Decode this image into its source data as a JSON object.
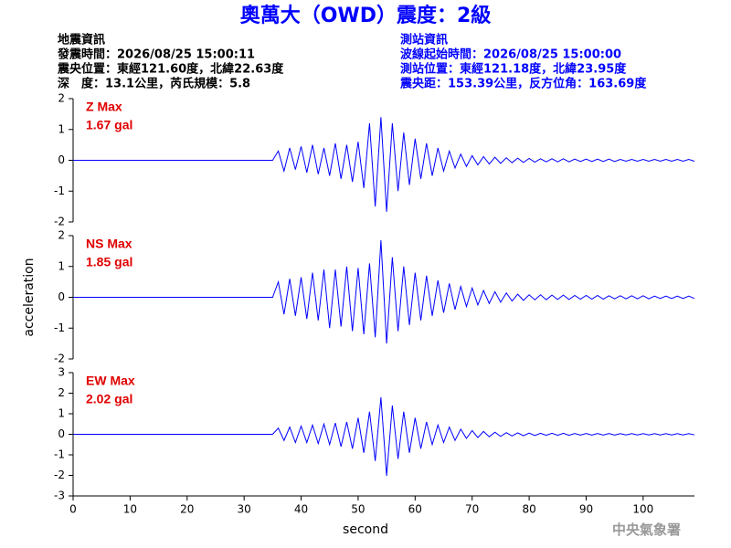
{
  "header": {
    "title": "奧萬大（OWD）震度：2級",
    "left": [
      "地震資訊",
      "發震時間：2026/08/25 15:00:11",
      "震央位置：東經121.60度，北緯22.63度",
      "深　度：13.1公里，芮氏規模：5.8"
    ],
    "right": [
      "測站資訊",
      "波線起始時間：2026/08/25 15:00:00",
      "測站位置：東經121.18度，北緯23.95度",
      "震央距：153.39公里，反方位角：163.69度"
    ]
  },
  "footer": "中央氣象署",
  "chart_data": [
    {
      "type": "line",
      "annotation": "Z Max",
      "max_label": "1.67 gal",
      "xlim": [
        0,
        109
      ],
      "ylim": [
        -2,
        2
      ],
      "yticks": [
        -2,
        -1,
        0,
        1,
        2
      ],
      "x": [
        0,
        35,
        36,
        37,
        38,
        39,
        40,
        41,
        42,
        43,
        44,
        45,
        46,
        47,
        48,
        49,
        50,
        51,
        52,
        53,
        54,
        55,
        56,
        57,
        58,
        59,
        60,
        61,
        62,
        63,
        64,
        65,
        66,
        67,
        68,
        69,
        70,
        71,
        72,
        73,
        74,
        75,
        76,
        77,
        78,
        79,
        80,
        81,
        82,
        83,
        84,
        85,
        86,
        87,
        88,
        89,
        90,
        91,
        92,
        93,
        94,
        95,
        96,
        97,
        98,
        99,
        100,
        101,
        102,
        103,
        104,
        105,
        106,
        107,
        108,
        109
      ],
      "series": [
        {
          "name": "Z",
          "color": "#0000ff",
          "values": [
            0,
            0,
            0.3,
            -0.35,
            0.4,
            -0.3,
            0.45,
            -0.4,
            0.5,
            -0.45,
            0.4,
            -0.5,
            0.55,
            -0.6,
            0.5,
            -0.7,
            0.6,
            -0.9,
            1.2,
            -1.5,
            1.4,
            -1.67,
            1.2,
            -1.0,
            0.9,
            -0.8,
            0.7,
            -0.6,
            0.55,
            -0.5,
            0.4,
            -0.35,
            0.3,
            -0.25,
            0.2,
            -0.2,
            0.15,
            -0.15,
            0.12,
            -0.12,
            0.1,
            -0.1,
            0.08,
            -0.08,
            0.07,
            -0.07,
            0.06,
            -0.06,
            0.05,
            -0.05,
            0.05,
            -0.05,
            0.05,
            -0.05,
            0.04,
            -0.04,
            0.04,
            -0.04,
            0.04,
            -0.04,
            0.04,
            -0.04,
            0.03,
            -0.03,
            0.03,
            -0.03,
            0.03,
            -0.03,
            0.03,
            -0.03,
            0.03,
            -0.03,
            0.03,
            -0.03,
            0.03,
            -0.03
          ]
        }
      ]
    },
    {
      "type": "line",
      "annotation": "NS Max",
      "max_label": "1.85 gal",
      "ylabel": "acceleration",
      "xlim": [
        0,
        109
      ],
      "ylim": [
        -2,
        2
      ],
      "yticks": [
        -2,
        -1,
        0,
        1,
        2
      ],
      "x": [
        0,
        35,
        36,
        37,
        38,
        39,
        40,
        41,
        42,
        43,
        44,
        45,
        46,
        47,
        48,
        49,
        50,
        51,
        52,
        53,
        54,
        55,
        56,
        57,
        58,
        59,
        60,
        61,
        62,
        63,
        64,
        65,
        66,
        67,
        68,
        69,
        70,
        71,
        72,
        73,
        74,
        75,
        76,
        77,
        78,
        79,
        80,
        81,
        82,
        83,
        84,
        85,
        86,
        87,
        88,
        89,
        90,
        91,
        92,
        93,
        94,
        95,
        96,
        97,
        98,
        99,
        100,
        101,
        102,
        103,
        104,
        105,
        106,
        107,
        108,
        109
      ],
      "series": [
        {
          "name": "NS",
          "color": "#0000ff",
          "values": [
            0,
            0,
            0.5,
            -0.55,
            0.6,
            -0.6,
            0.65,
            -0.7,
            0.8,
            -0.75,
            0.9,
            -1.0,
            0.9,
            -0.95,
            1.0,
            -1.1,
            0.95,
            -1.2,
            1.1,
            -1.3,
            1.85,
            -1.5,
            1.3,
            -1.1,
            1.0,
            -0.9,
            0.8,
            -0.75,
            0.7,
            -0.6,
            0.55,
            -0.5,
            0.45,
            -0.4,
            0.35,
            -0.3,
            0.3,
            -0.25,
            0.22,
            -0.2,
            0.18,
            -0.16,
            0.14,
            -0.12,
            0.1,
            -0.1,
            0.08,
            -0.08,
            0.08,
            -0.08,
            0.07,
            -0.07,
            0.07,
            -0.07,
            0.06,
            -0.06,
            0.06,
            -0.06,
            0.06,
            -0.06,
            0.05,
            -0.05,
            0.05,
            -0.05,
            0.05,
            -0.05,
            0.05,
            -0.05,
            0.04,
            -0.04,
            0.04,
            -0.04,
            0.04,
            -0.04,
            0.04,
            -0.04
          ]
        }
      ]
    },
    {
      "type": "line",
      "annotation": "EW Max",
      "max_label": "2.02 gal",
      "xlabel": "second",
      "xlim": [
        0,
        109
      ],
      "ylim": [
        -3,
        3
      ],
      "yticks": [
        -3,
        -2,
        -1,
        0,
        1,
        2,
        3
      ],
      "xticks": [
        0,
        10,
        20,
        30,
        40,
        50,
        60,
        70,
        80,
        90,
        100
      ],
      "x": [
        0,
        35,
        36,
        37,
        38,
        39,
        40,
        41,
        42,
        43,
        44,
        45,
        46,
        47,
        48,
        49,
        50,
        51,
        52,
        53,
        54,
        55,
        56,
        57,
        58,
        59,
        60,
        61,
        62,
        63,
        64,
        65,
        66,
        67,
        68,
        69,
        70,
        71,
        72,
        73,
        74,
        75,
        76,
        77,
        78,
        79,
        80,
        81,
        82,
        83,
        84,
        85,
        86,
        87,
        88,
        89,
        90,
        91,
        92,
        93,
        94,
        95,
        96,
        97,
        98,
        99,
        100,
        101,
        102,
        103,
        104,
        105,
        106,
        107,
        108,
        109
      ],
      "series": [
        {
          "name": "EW",
          "color": "#0000ff",
          "values": [
            0,
            0,
            0.3,
            -0.3,
            0.35,
            -0.4,
            0.4,
            -0.4,
            0.45,
            -0.45,
            0.5,
            -0.5,
            0.55,
            -0.6,
            0.6,
            -0.7,
            0.8,
            -0.9,
            1.1,
            -1.3,
            1.8,
            -2.02,
            1.4,
            -1.2,
            1.1,
            -0.9,
            0.8,
            -0.7,
            0.6,
            -0.5,
            0.45,
            -0.4,
            0.35,
            -0.3,
            0.25,
            -0.2,
            0.18,
            -0.16,
            0.14,
            -0.12,
            0.1,
            -0.1,
            0.08,
            -0.08,
            0.07,
            -0.07,
            0.06,
            -0.06,
            0.05,
            -0.05,
            0.05,
            -0.05,
            0.05,
            -0.05,
            0.04,
            -0.04,
            0.04,
            -0.04,
            0.04,
            -0.04,
            0.04,
            -0.04,
            0.03,
            -0.03,
            0.03,
            -0.03,
            0.03,
            -0.03,
            0.03,
            -0.03,
            0.03,
            -0.03,
            0.03,
            -0.03,
            0.03,
            -0.03
          ]
        }
      ]
    }
  ]
}
